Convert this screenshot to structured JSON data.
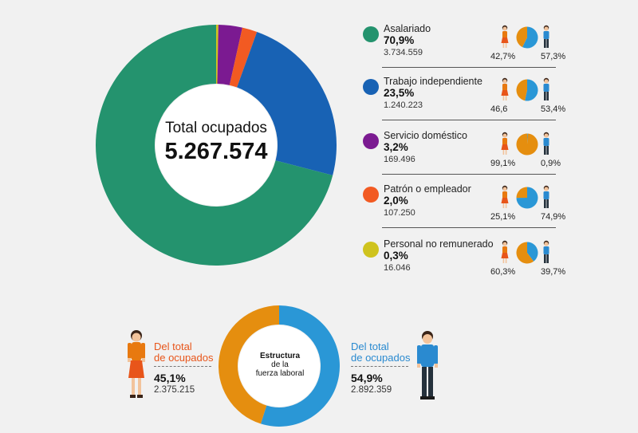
{
  "chart_data": [
    {
      "type": "pie",
      "center_title": "Total ocupados",
      "center_total": "5.267.574",
      "slices": [
        {
          "label": "Asalariado",
          "pct_label": "70,9%",
          "value": 70.9,
          "count": "3.734.559",
          "color": "#24936e",
          "women_pct_label": "42,7%",
          "men_pct_label": "57,3%",
          "women_share": 42.7
        },
        {
          "label": "Trabajo independiente",
          "pct_label": "23,5%",
          "value": 23.5,
          "count": "1.240.223",
          "color": "#1862b4",
          "women_pct_label": "46,6",
          "men_pct_label": "53,4%",
          "women_share": 46.6
        },
        {
          "label": "Servicio doméstico",
          "pct_label": "3,2%",
          "value": 3.2,
          "count": "169.496",
          "color": "#7b1a91",
          "women_pct_label": "99,1%",
          "men_pct_label": "0,9%",
          "women_share": 99.1
        },
        {
          "label": "Patrón o empleador",
          "pct_label": "2,0%",
          "value": 2.0,
          "count": "107.250",
          "color": "#f25a22",
          "women_pct_label": "25,1%",
          "men_pct_label": "74,9%",
          "women_share": 25.1
        },
        {
          "label": "Personal no remunerado",
          "pct_label": "0,3%",
          "value": 0.3,
          "count": "16.046",
          "color": "#cfc31e",
          "women_pct_label": "60,3%",
          "men_pct_label": "39,7%",
          "women_share": 60.3
        }
      ]
    },
    {
      "type": "pie",
      "center_title_bold": "Estructura",
      "center_line2": "de la",
      "center_line3": "fuerza laboral",
      "slices": [
        {
          "label": "Del total de ocupados",
          "label_line1": "Del total",
          "label_line2": "de ocupados",
          "pct_label": "45,1%",
          "value": 45.1,
          "count": "2.375.215",
          "color": "#e58e0f"
        },
        {
          "label": "Del total de ocupados",
          "label_line1": "Del total",
          "label_line2": "de ocupados",
          "pct_label": "54,9%",
          "value": 54.9,
          "count": "2.892.359",
          "color": "#2a97d6"
        }
      ]
    }
  ],
  "colors": {
    "woman_shirt": "#e8790f",
    "woman_skirt": "#e8551a",
    "skin": "#f2c39b",
    "man_shirt": "#2a8ad0",
    "man_pants": "#25313c",
    "mini_pie_women": "#e58e0f",
    "mini_pie_men": "#2a97d6"
  }
}
